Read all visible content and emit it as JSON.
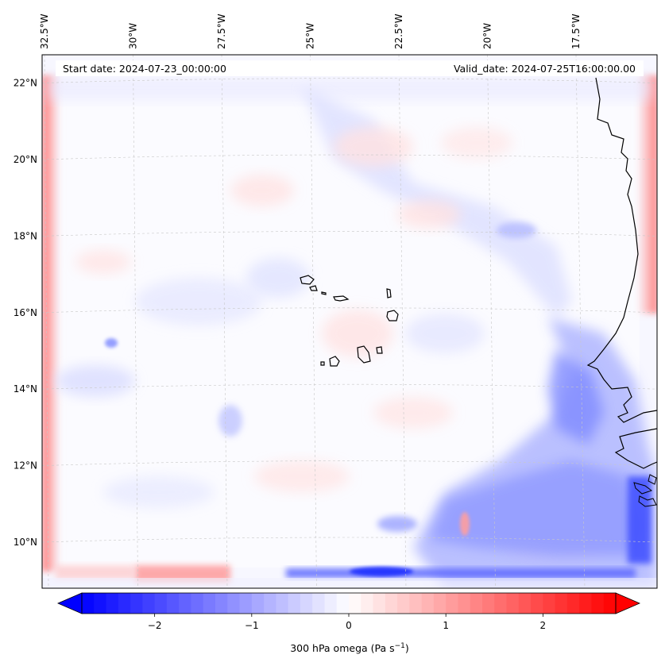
{
  "map": {
    "start_date_label": "Start date: 2024-07-23_00:00:00",
    "valid_date_label": "Valid_date: 2024-07-25T16:00:00.00",
    "projection": "lambert-conformal",
    "extent": {
      "lon": [
        -33.0,
        -15.5
      ],
      "lat": [
        9.0,
        22.8
      ]
    },
    "coastline_color": "#000000",
    "gridline_color": "#c8c8c8",
    "longitude_labels": [
      {
        "lon": -32.5,
        "label": "32.5°W"
      },
      {
        "lon": -30.0,
        "label": "30°W"
      },
      {
        "lon": -27.5,
        "label": "27.5°W"
      },
      {
        "lon": -25.0,
        "label": "25°W"
      },
      {
        "lon": -22.5,
        "label": "22.5°W"
      },
      {
        "lon": -20.0,
        "label": "20°W"
      },
      {
        "lon": -17.5,
        "label": "17.5°W"
      }
    ],
    "latitude_labels": [
      {
        "lat": 22,
        "label": "22°N"
      },
      {
        "lat": 20,
        "label": "20°N"
      },
      {
        "lat": 18,
        "label": "18°N"
      },
      {
        "lat": 16,
        "label": "16°N"
      },
      {
        "lat": 14,
        "label": "14°N"
      },
      {
        "lat": 12,
        "label": "12°N"
      },
      {
        "lat": 10,
        "label": "10°N"
      }
    ]
  },
  "colorbar": {
    "label": "300 hPa omega (Pa s",
    "label_exponent": "−1",
    "label_suffix": ")",
    "range": [
      -2.75,
      2.75
    ],
    "colormap": "bwr",
    "colors": {
      "min": "#0000ff",
      "mid": "#ffffff",
      "max": "#ff0000"
    },
    "extend": "both",
    "ticks": [
      {
        "value": -2,
        "label": "−2"
      },
      {
        "value": -1,
        "label": "−1"
      },
      {
        "value": 0,
        "label": "0"
      },
      {
        "value": 1,
        "label": "1"
      },
      {
        "value": 2,
        "label": "2"
      }
    ]
  }
}
